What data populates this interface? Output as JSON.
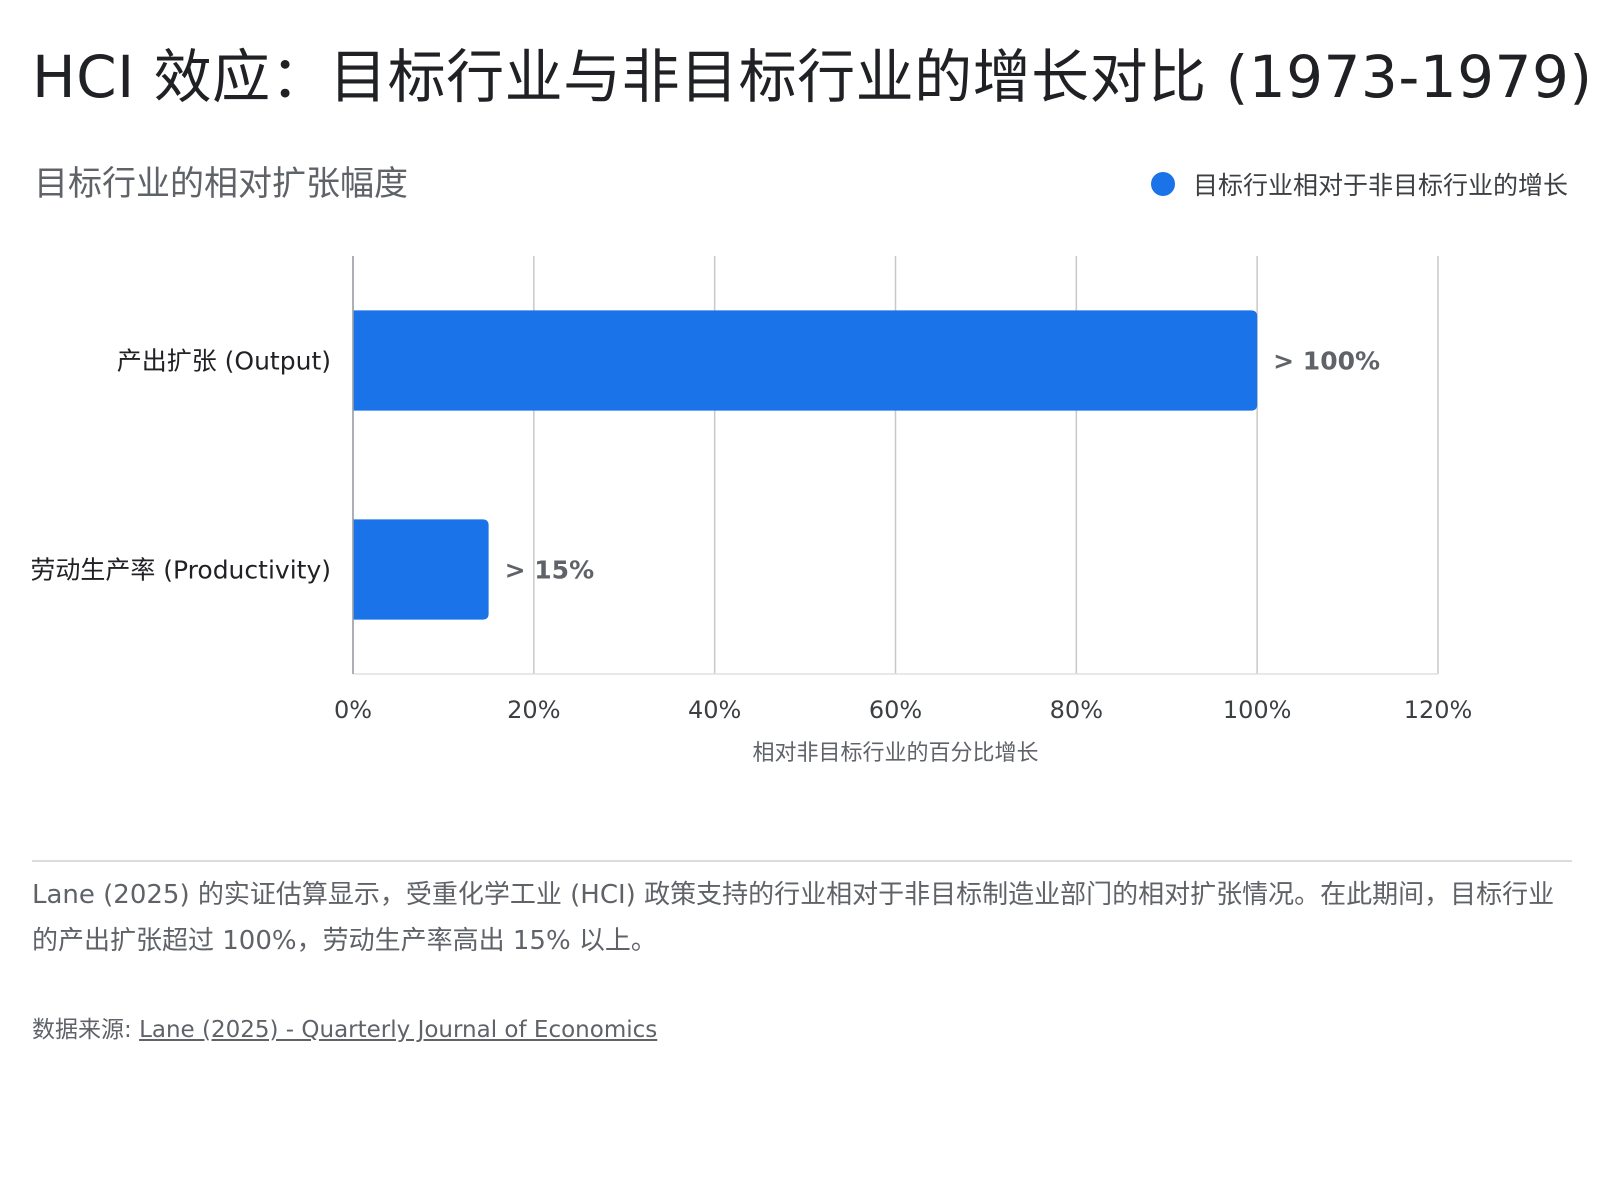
{
  "title": "HCI 效应：目标行业与非目标行业的增长对比 (1973-1979)",
  "chart_data": {
    "type": "bar",
    "orientation": "horizontal",
    "subtitle": "目标行业的相对扩张幅度",
    "categories": [
      "产出扩张 (Output)",
      "劳动生产率 (Productivity)"
    ],
    "series": [
      {
        "name": "目标行业相对于非目标行业的增长",
        "values": [
          100,
          15
        ],
        "data_labels": [
          "> 100%",
          "> 15%"
        ],
        "color": "#1a73e8"
      }
    ],
    "xlabel": "相对非目标行业的百分比增长",
    "xlim": [
      0,
      120
    ],
    "x_ticks": [
      "0%",
      "20%",
      "40%",
      "60%",
      "80%",
      "100%",
      "120%"
    ],
    "grid": true,
    "legend_position": "top-right"
  },
  "description": "Lane (2025) 的实证估算显示，受重化学工业 (HCI) 政策支持的行业相对于非目标制造业部门的相对扩张情况。在此期间，目标行业的产出扩张超过 100%，劳动生产率高出 15% 以上。",
  "source": {
    "label": "数据来源:",
    "link_text": "Lane (2025) - Quarterly Journal of Economics"
  }
}
